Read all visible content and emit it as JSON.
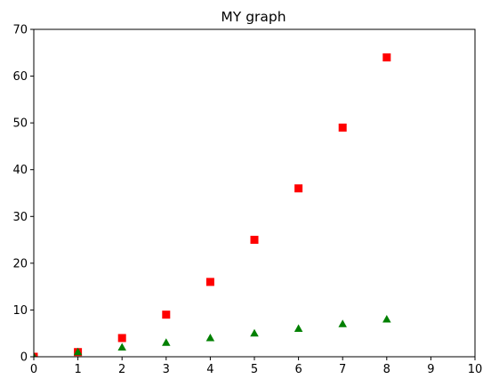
{
  "chart_data": {
    "type": "scatter",
    "title": "MY graph",
    "xlabel": "",
    "ylabel": "",
    "xlim": [
      0,
      10
    ],
    "ylim": [
      0,
      70
    ],
    "xticks": [
      "0",
      "1",
      "2",
      "3",
      "4",
      "5",
      "6",
      "7",
      "8",
      "9",
      "10"
    ],
    "yticks": [
      "0",
      "10",
      "20",
      "30",
      "40",
      "50",
      "60",
      "70"
    ],
    "grid": false,
    "series": [
      {
        "marker": "square",
        "color": "#ff0000",
        "x": [
          0,
          1,
          2,
          3,
          4,
          5,
          6,
          7,
          8
        ],
        "y": [
          0,
          1,
          4,
          9,
          16,
          25,
          36,
          49,
          64
        ]
      },
      {
        "marker": "triangle",
        "color": "#008000",
        "x": [
          0,
          1,
          2,
          3,
          4,
          5,
          6,
          7,
          8
        ],
        "y": [
          0,
          1,
          2,
          3,
          4,
          5,
          6,
          7,
          8
        ]
      }
    ]
  }
}
